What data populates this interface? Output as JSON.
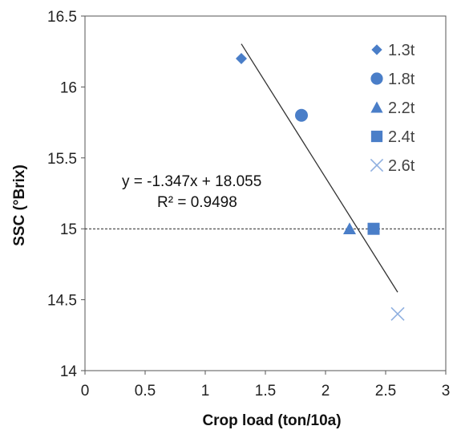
{
  "chart_data": {
    "type": "scatter",
    "title": "",
    "xlabel": "Crop load  (ton/10a)",
    "ylabel": "SSC (°Brix)",
    "xlim": [
      0,
      3
    ],
    "ylim": [
      14,
      16.5
    ],
    "xticks": [
      0,
      0.5,
      1,
      1.5,
      2,
      2.5,
      3
    ],
    "yticks": [
      14,
      14.5,
      15,
      15.5,
      16,
      16.5
    ],
    "xtick_labels": [
      "0",
      "0.5",
      "1",
      "1.5",
      "2",
      "2.5",
      "3"
    ],
    "ytick_labels": [
      "14",
      "14.5",
      "15",
      "15.5",
      "16",
      "16.5"
    ],
    "grid": false,
    "legend_position": "right",
    "marker_color": "#4a7ec8",
    "series": [
      {
        "name": "1.3t",
        "marker": "diamond",
        "x": [
          1.3
        ],
        "y": [
          16.2
        ],
        "color": "#4a7ec8"
      },
      {
        "name": "1.8t",
        "marker": "circle",
        "x": [
          1.8
        ],
        "y": [
          15.8
        ],
        "color": "#4a7ec8"
      },
      {
        "name": "2.2t",
        "marker": "triangle",
        "x": [
          2.2
        ],
        "y": [
          15.0
        ],
        "color": "#4a7ec8"
      },
      {
        "name": "2.4t",
        "marker": "square",
        "x": [
          2.4
        ],
        "y": [
          15.0
        ],
        "color": "#4a7ec8"
      },
      {
        "name": "2.6t",
        "marker": "x",
        "x": [
          2.6
        ],
        "y": [
          14.4
        ],
        "color": "#8fb0e0"
      }
    ],
    "trendline": {
      "x_start": 1.3,
      "x_end": 2.6,
      "slope": -1.347,
      "intercept": 18.055,
      "color": "#333333"
    },
    "reference_line": {
      "y": 15,
      "style": "dashed",
      "color": "#222222"
    },
    "annotation": {
      "equation": "y = -1.347x  + 18.055",
      "r2": "R² = 0.9498"
    }
  }
}
